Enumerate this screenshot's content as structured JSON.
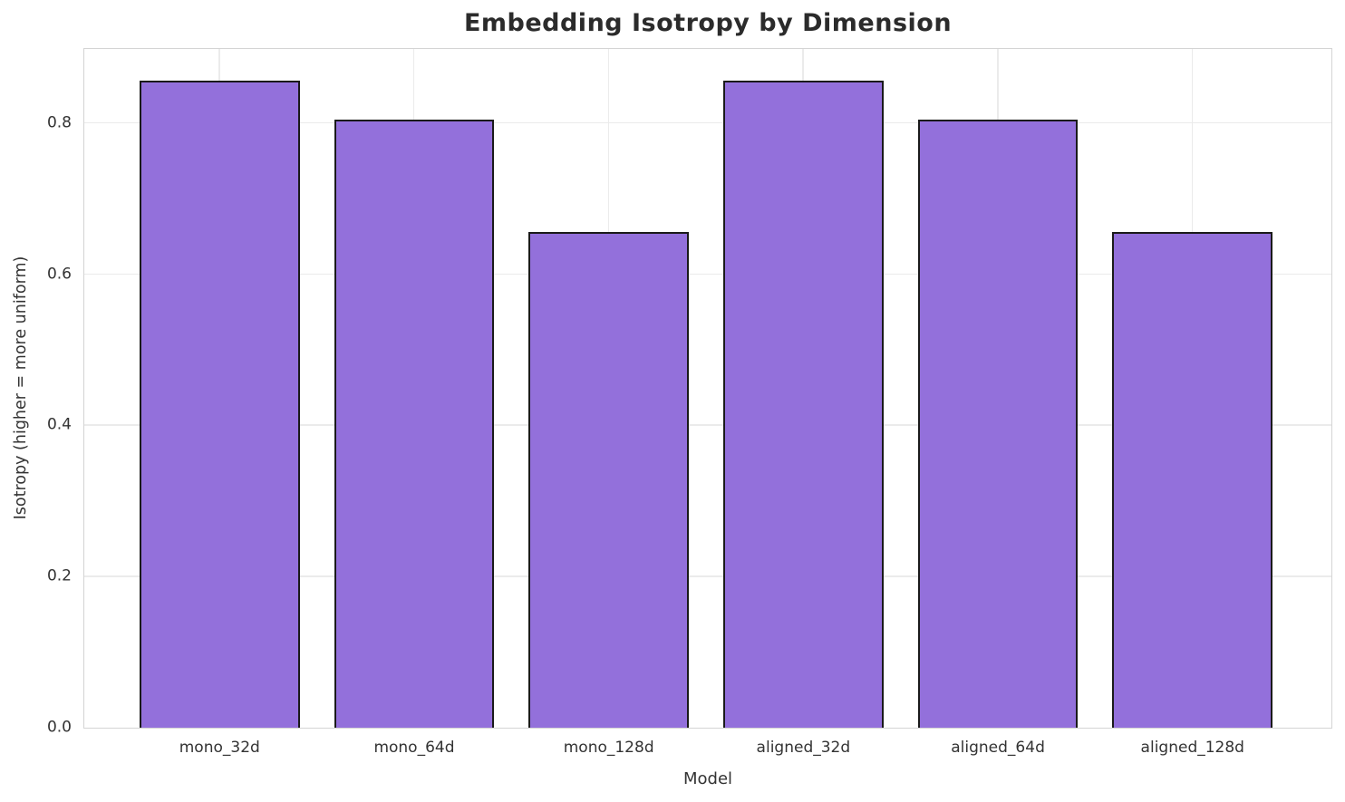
{
  "chart_data": {
    "type": "bar",
    "title": "Embedding Isotropy by Dimension",
    "xlabel": "Model",
    "ylabel": "Isotropy (higher = more uniform)",
    "categories": [
      "mono_32d",
      "mono_64d",
      "mono_128d",
      "aligned_32d",
      "aligned_64d",
      "aligned_128d"
    ],
    "values": [
      0.856,
      0.805,
      0.656,
      0.856,
      0.805,
      0.656
    ],
    "ylim": [
      0,
      0.898
    ],
    "yticks": [
      0.0,
      0.2,
      0.4,
      0.6,
      0.8
    ],
    "ytick_labels": [
      "0.0",
      "0.2",
      "0.4",
      "0.6",
      "0.8"
    ],
    "grid": true,
    "legend": "none",
    "bar_color": "#9370DB",
    "bar_edge_color": "#1a1a1a",
    "grid_color": "#ebebeb",
    "spine_color": "#d4d4d4",
    "title_color": "#2b2b2b",
    "tick_color": "#333333"
  }
}
